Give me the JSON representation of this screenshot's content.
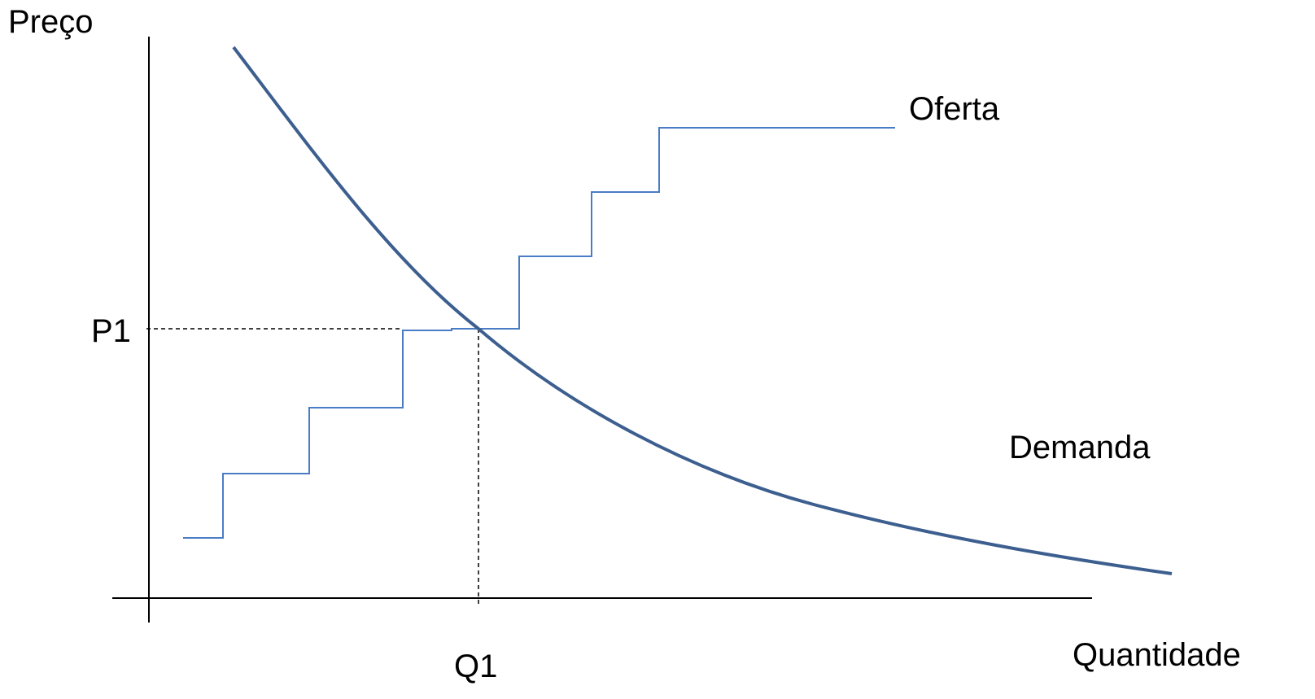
{
  "axes": {
    "y_label": "Preço",
    "x_label": "Quantidade"
  },
  "equilibrium": {
    "price_label": "P1",
    "quantity_label": "Q1"
  },
  "curves": {
    "supply_label": "Oferta",
    "demand_label": "Demanda"
  },
  "colors": {
    "axis": "#000000",
    "demand": "#3d5f8f",
    "supply": "#4a7cc6",
    "guide": "#000000",
    "text": "#000000"
  }
}
